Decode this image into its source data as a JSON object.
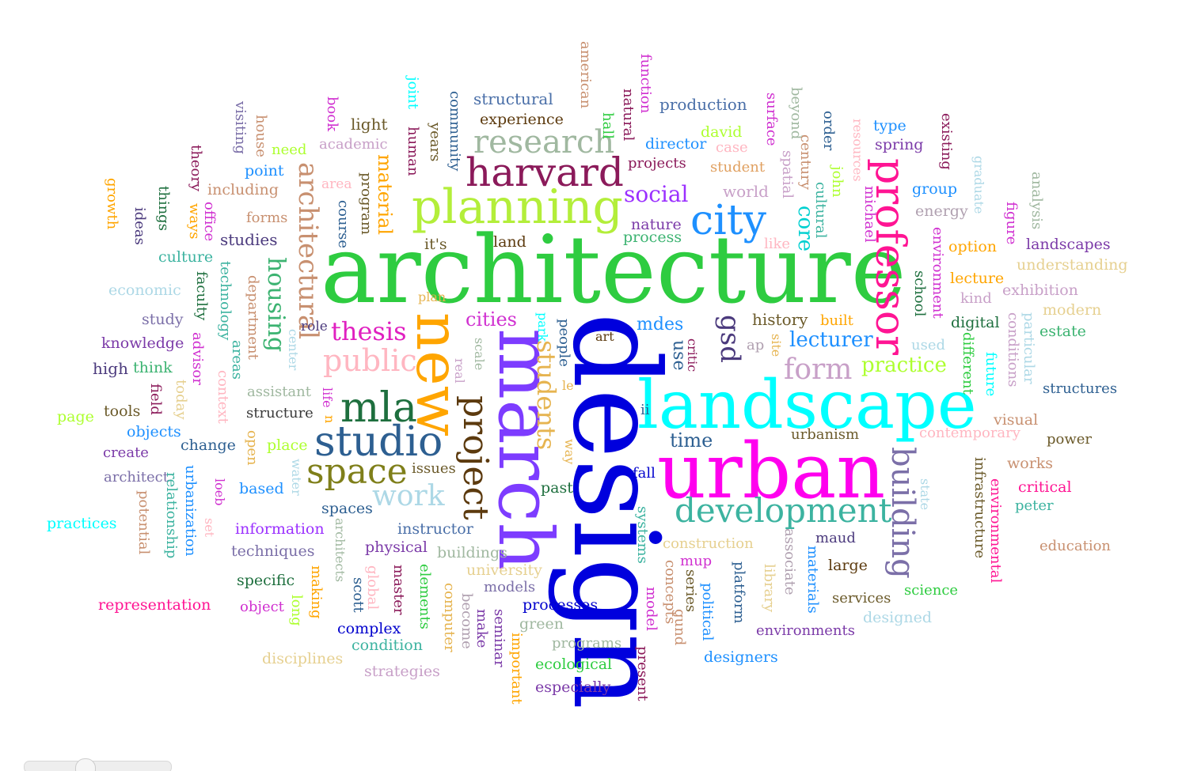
{
  "word_cloud": {
    "words": [
      {
        "text": "architecture",
        "color": "#2ecc40"
      },
      {
        "text": "design",
        "color": "#0000dd"
      },
      {
        "text": "urban",
        "color": "#ff00ee"
      },
      {
        "text": "landscape",
        "color": "#00ffff"
      },
      {
        "text": "march",
        "color": "#7d3cff"
      },
      {
        "text": "new",
        "color": "#ffa500"
      },
      {
        "text": "planning",
        "color": "#b3ee3a"
      },
      {
        "text": "harvard",
        "color": "#8b1a5a"
      },
      {
        "text": "professor",
        "color": "#ff1493"
      },
      {
        "text": "city",
        "color": "#1e90ff"
      },
      {
        "text": "development",
        "color": "#3cb3a0"
      },
      {
        "text": "studio",
        "color": "#2d5f91"
      },
      {
        "text": "space",
        "color": "#7f7f1a"
      },
      {
        "text": "project",
        "color": "#5c3a0e"
      },
      {
        "text": "mla",
        "color": "#1e6f3e"
      },
      {
        "text": "building",
        "color": "#7b6fa8"
      },
      {
        "text": "research",
        "color": "#a0b8a0"
      },
      {
        "text": "architectural",
        "color": "#c89070"
      },
      {
        "text": "students",
        "color": "#e6b450"
      },
      {
        "text": "form",
        "color": "#c8a0c8"
      },
      {
        "text": "gsd",
        "color": "#4b3a7d"
      },
      {
        "text": "public",
        "color": "#ffb6c1"
      },
      {
        "text": "work",
        "color": "#add8e6"
      },
      {
        "text": "housing",
        "color": "#3cb371"
      },
      {
        "text": "thesis",
        "color": "#e020c0"
      },
      {
        "text": "social",
        "color": "#9b30ff"
      },
      {
        "text": "practice",
        "color": "#adff2f"
      },
      {
        "text": "lecturer",
        "color": "#1e90ff"
      },
      {
        "text": "core",
        "color": "#00d0d0"
      },
      {
        "text": "material",
        "color": "#ffa500"
      },
      {
        "text": "cities",
        "color": "#d030d0"
      },
      {
        "text": "history",
        "color": "#6b5a2a"
      },
      {
        "text": "use",
        "color": "#2d5f91"
      },
      {
        "text": "time",
        "color": "#2d5f91"
      },
      {
        "text": "mdes",
        "color": "#1e90ff"
      },
      {
        "text": "structural",
        "color": "#4a6fa8"
      },
      {
        "text": "production",
        "color": "#4a6fa8"
      },
      {
        "text": "experience",
        "color": "#5c3a0e"
      },
      {
        "text": "light",
        "color": "#6b5a2a"
      },
      {
        "text": "type",
        "color": "#1e90ff"
      },
      {
        "text": "spring",
        "color": "#7b3aa8"
      },
      {
        "text": "director",
        "color": "#1e90ff"
      },
      {
        "text": "david",
        "color": "#adff2f"
      },
      {
        "text": "case",
        "color": "#ffb6c1"
      },
      {
        "text": "projects",
        "color": "#8b1a5a"
      },
      {
        "text": "student",
        "color": "#e0a060"
      },
      {
        "text": "world",
        "color": "#c8a0c8"
      },
      {
        "text": "group",
        "color": "#1e90ff"
      },
      {
        "text": "energy",
        "color": "#b0a0b0"
      },
      {
        "text": "nature",
        "color": "#7b3aa8"
      },
      {
        "text": "process",
        "color": "#3cb371"
      },
      {
        "text": "land",
        "color": "#5c3a0e"
      },
      {
        "text": "it's",
        "color": "#6b5a2a"
      },
      {
        "text": "academic",
        "color": "#c8a0c8"
      },
      {
        "text": "need",
        "color": "#adff2f"
      },
      {
        "text": "point",
        "color": "#1e90ff"
      },
      {
        "text": "area",
        "color": "#ffb6c1"
      },
      {
        "text": "including",
        "color": "#c89070"
      },
      {
        "text": "forms",
        "color": "#c89070"
      },
      {
        "text": "studies",
        "color": "#4b3a7d"
      },
      {
        "text": "culture",
        "color": "#3cb3a0"
      },
      {
        "text": "economic",
        "color": "#add8e6"
      },
      {
        "text": "study",
        "color": "#7b6fa8"
      },
      {
        "text": "knowledge",
        "color": "#7b3aa8"
      },
      {
        "text": "high",
        "color": "#4b3a7d"
      },
      {
        "text": "think",
        "color": "#3cb371"
      },
      {
        "text": "tools",
        "color": "#6b5a2a"
      },
      {
        "text": "page",
        "color": "#adff2f"
      },
      {
        "text": "objects",
        "color": "#1e90ff"
      },
      {
        "text": "create",
        "color": "#7b3aa8"
      },
      {
        "text": "change",
        "color": "#2d5f91"
      },
      {
        "text": "architect",
        "color": "#7b6fa8"
      },
      {
        "text": "practices",
        "color": "#00ffff"
      },
      {
        "text": "assistant",
        "color": "#a0b8a0"
      },
      {
        "text": "structure",
        "color": "#3a3a3a"
      },
      {
        "text": "place",
        "color": "#adff2f"
      },
      {
        "text": "based",
        "color": "#1e90ff"
      },
      {
        "text": "issues",
        "color": "#6b5a2a"
      },
      {
        "text": "spaces",
        "color": "#2d5f91"
      },
      {
        "text": "information",
        "color": "#9b30ff"
      },
      {
        "text": "techniques",
        "color": "#7b6fa8"
      },
      {
        "text": "instructor",
        "color": "#4a6fa8"
      },
      {
        "text": "physical",
        "color": "#7b3aa8"
      },
      {
        "text": "buildings",
        "color": "#a0b8a0"
      },
      {
        "text": "university",
        "color": "#e6d090"
      },
      {
        "text": "specific",
        "color": "#1e6f3e"
      },
      {
        "text": "object",
        "color": "#d030d0"
      },
      {
        "text": "representation",
        "color": "#ff1493"
      },
      {
        "text": "models",
        "color": "#7b6fa8"
      },
      {
        "text": "processes",
        "color": "#0000cd"
      },
      {
        "text": "complex",
        "color": "#0000cd"
      },
      {
        "text": "green",
        "color": "#a0b8a0"
      },
      {
        "text": "condition",
        "color": "#3cb3a0"
      },
      {
        "text": "programs",
        "color": "#a0b8a0"
      },
      {
        "text": "disciplines",
        "color": "#e6d090"
      },
      {
        "text": "ecological",
        "color": "#2ecc40"
      },
      {
        "text": "strategies",
        "color": "#c8a0c8"
      },
      {
        "text": "especially",
        "color": "#7b3aa8"
      },
      {
        "text": "designers",
        "color": "#1e90ff"
      },
      {
        "text": "environments",
        "color": "#7b3aa8"
      },
      {
        "text": "services",
        "color": "#6b5a2a"
      },
      {
        "text": "science",
        "color": "#2ecc40"
      },
      {
        "text": "designed",
        "color": "#add8e6"
      },
      {
        "text": "large",
        "color": "#5c3a0e"
      },
      {
        "text": "maud",
        "color": "#4b3a7d"
      },
      {
        "text": "mup",
        "color": "#d030d0"
      },
      {
        "text": "construction",
        "color": "#e6d090"
      },
      {
        "text": "urbanism",
        "color": "#6b5a2a"
      },
      {
        "text": "contemporary",
        "color": "#ffb6c1"
      },
      {
        "text": "power",
        "color": "#6b5a2a"
      },
      {
        "text": "visual",
        "color": "#c89070"
      },
      {
        "text": "works",
        "color": "#c89070"
      },
      {
        "text": "critical",
        "color": "#ff1493"
      },
      {
        "text": "peter",
        "color": "#3cb3a0"
      },
      {
        "text": "education",
        "color": "#c89070"
      },
      {
        "text": "structures",
        "color": "#2d5f91"
      },
      {
        "text": "estate",
        "color": "#3cb371"
      },
      {
        "text": "modern",
        "color": "#e6d090"
      },
      {
        "text": "exhibition",
        "color": "#c8a0c8"
      },
      {
        "text": "understanding",
        "color": "#e6d090"
      },
      {
        "text": "landscapes",
        "color": "#7b3aa8"
      },
      {
        "text": "option",
        "color": "#ffa500"
      },
      {
        "text": "lecture",
        "color": "#ffa500"
      },
      {
        "text": "kind",
        "color": "#c8a0c8"
      },
      {
        "text": "digital",
        "color": "#1e6f3e"
      },
      {
        "text": "built",
        "color": "#ffa500"
      },
      {
        "text": "used",
        "color": "#add8e6"
      },
      {
        "text": "fall",
        "color": "#0000cd"
      },
      {
        "text": "past",
        "color": "#1e6f3e"
      },
      {
        "text": "art",
        "color": "#5c3a0e"
      },
      {
        "text": "ap",
        "color": "#b0a0b0"
      },
      {
        "text": "ii",
        "color": "#2d5f91"
      },
      {
        "text": "le",
        "color": "#e6b450"
      },
      {
        "text": "role",
        "color": "#4b3a7d"
      },
      {
        "text": "plan",
        "color": "#e6b450"
      },
      {
        "text": "american",
        "color": "#c89070"
      },
      {
        "text": "function",
        "color": "#d030d0"
      },
      {
        "text": "natural",
        "color": "#8b1a5a"
      },
      {
        "text": "hall",
        "color": "#2ecc40"
      },
      {
        "text": "joint",
        "color": "#00ffff"
      },
      {
        "text": "human",
        "color": "#8b1a5a"
      },
      {
        "text": "years",
        "color": "#6b5a2a"
      },
      {
        "text": "community",
        "color": "#2d5f91"
      },
      {
        "text": "book",
        "color": "#d030d0"
      },
      {
        "text": "visiting",
        "color": "#7b6fa8"
      },
      {
        "text": "house",
        "color": "#c89070"
      },
      {
        "text": "theory",
        "color": "#8b1a5a"
      },
      {
        "text": "growth",
        "color": "#ffa500"
      },
      {
        "text": "things",
        "color": "#1e6f3e"
      },
      {
        "text": "ideas",
        "color": "#4b3a7d"
      },
      {
        "text": "ways",
        "color": "#ffa500"
      },
      {
        "text": "office",
        "color": "#d030d0"
      },
      {
        "text": "faculty",
        "color": "#1e6f3e"
      },
      {
        "text": "technology",
        "color": "#3cb3a0"
      },
      {
        "text": "department",
        "color": "#c89070"
      },
      {
        "text": "areas",
        "color": "#3cb3a0"
      },
      {
        "text": "advisor",
        "color": "#d030d0"
      },
      {
        "text": "field",
        "color": "#8b1a5a"
      },
      {
        "text": "today",
        "color": "#e6d090"
      },
      {
        "text": "context",
        "color": "#ffb6c1"
      },
      {
        "text": "open",
        "color": "#e6b450"
      },
      {
        "text": "center",
        "color": "#add8e6"
      },
      {
        "text": "life",
        "color": "#d030d0"
      },
      {
        "text": "n",
        "color": "#ffa500"
      },
      {
        "text": "water",
        "color": "#add8e6"
      },
      {
        "text": "loeb",
        "color": "#d030d0"
      },
      {
        "text": "set",
        "color": "#ffb6c1"
      },
      {
        "text": "urbanization",
        "color": "#1e90ff"
      },
      {
        "text": "relationship",
        "color": "#3cb3a0"
      },
      {
        "text": "potential",
        "color": "#c89070"
      },
      {
        "text": "architects",
        "color": "#a0b8a0"
      },
      {
        "text": "making",
        "color": "#ffa500"
      },
      {
        "text": "long",
        "color": "#adff2f"
      },
      {
        "text": "scott",
        "color": "#2d5f91"
      },
      {
        "text": "global",
        "color": "#ffb6c1"
      },
      {
        "text": "master",
        "color": "#8b1a5a"
      },
      {
        "text": "elements",
        "color": "#2ecc40"
      },
      {
        "text": "computer",
        "color": "#e6b450"
      },
      {
        "text": "become",
        "color": "#b0a0b0"
      },
      {
        "text": "make",
        "color": "#7b3aa8"
      },
      {
        "text": "seminar",
        "color": "#7b3aa8"
      },
      {
        "text": "important",
        "color": "#ffa500"
      },
      {
        "text": "present",
        "color": "#8b1a5a"
      },
      {
        "text": "model",
        "color": "#d030d0"
      },
      {
        "text": "concepts",
        "color": "#c89070"
      },
      {
        "text": "gund",
        "color": "#c89070"
      },
      {
        "text": "series",
        "color": "#6b5a2a"
      },
      {
        "text": "political",
        "color": "#1e90ff"
      },
      {
        "text": "platform",
        "color": "#2d5f91"
      },
      {
        "text": "library",
        "color": "#e6d090"
      },
      {
        "text": "associate",
        "color": "#b0a0b0"
      },
      {
        "text": "materials",
        "color": "#1e90ff"
      },
      {
        "text": "systems",
        "color": "#3cb3a0"
      },
      {
        "text": "way",
        "color": "#e6b450"
      },
      {
        "text": "people",
        "color": "#2d5f91"
      },
      {
        "text": "park",
        "color": "#00ffff"
      },
      {
        "text": "scale",
        "color": "#a0b8a0"
      },
      {
        "text": "real",
        "color": "#c8a0c8"
      },
      {
        "text": "critic",
        "color": "#8b1a5a"
      },
      {
        "text": "site",
        "color": "#e6b450"
      },
      {
        "text": "surface",
        "color": "#d030d0"
      },
      {
        "text": "spatial",
        "color": "#c8a0c8"
      },
      {
        "text": "beyond",
        "color": "#a0b8a0"
      },
      {
        "text": "century",
        "color": "#c89070"
      },
      {
        "text": "order",
        "color": "#2d5f91"
      },
      {
        "text": "john",
        "color": "#adff2f"
      },
      {
        "text": "cultural",
        "color": "#3cb3a0"
      },
      {
        "text": "like",
        "color": "#ffb6c1"
      },
      {
        "text": "resources",
        "color": "#ffb6c1"
      },
      {
        "text": "michael",
        "color": "#d030d0"
      },
      {
        "text": "school",
        "color": "#1e6f3e"
      },
      {
        "text": "environment",
        "color": "#d030d0"
      },
      {
        "text": "existing",
        "color": "#8b1a5a"
      },
      {
        "text": "graduate",
        "color": "#add8e6"
      },
      {
        "text": "figure",
        "color": "#d030d0"
      },
      {
        "text": "analysis",
        "color": "#a0b8a0"
      },
      {
        "text": "particular",
        "color": "#add8e6"
      },
      {
        "text": "conditions",
        "color": "#c8a0c8"
      },
      {
        "text": "different",
        "color": "#2ecc40"
      },
      {
        "text": "future",
        "color": "#00ffff"
      },
      {
        "text": "infrastructure",
        "color": "#6b5a2a"
      },
      {
        "text": "environmental",
        "color": "#ff1493"
      },
      {
        "text": "state",
        "color": "#add8e6"
      },
      {
        "text": "program",
        "color": "#6b5a2a"
      },
      {
        "text": "course",
        "color": "#2d5f91"
      }
    ]
  }
}
